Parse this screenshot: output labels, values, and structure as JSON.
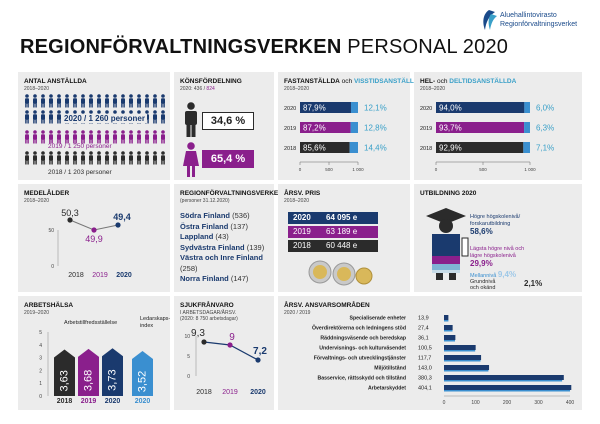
{
  "logo": {
    "line1": "Aluehallintovirasto",
    "line2": "Regionförvaltningsverket"
  },
  "title": {
    "bold": "REGIONFÖRVALTNINGSVERKEN",
    "normal": "PERSONAL 2020"
  },
  "antal": {
    "heading": "ANTAL ANSTÄLLDA",
    "years": "2018–2020",
    "line2020": "2020 / 1 260 personer",
    "line2019": "2019 / 1 250 personer",
    "line2018": "2018 / 1 203 personer"
  },
  "kon": {
    "heading": "KÖNSFÖRDELNING",
    "sub_prefix": "2020: ",
    "sub_men": "436",
    "sub_sep": " / ",
    "sub_women": "824",
    "men_pct": "34,6 %",
    "women_pct": "65,4 %",
    "colors": {
      "men": "#2b2b2b",
      "women": "#8a1f8c"
    }
  },
  "fast": {
    "heading_a": "FASTANSTÄLLDA",
    "heading_and": " och ",
    "heading_b": "VISSTIDSANSTÄLLDA",
    "years": "2018–2020",
    "rows": [
      {
        "year": "2020",
        "left": "87,9%",
        "right": "12,1%",
        "share": 0.879
      },
      {
        "year": "2019",
        "left": "87,2%",
        "right": "12,8%",
        "share": 0.872
      },
      {
        "year": "2018",
        "left": "85,6%",
        "right": "14,4%",
        "share": 0.856
      }
    ],
    "ticks": [
      "0",
      "500",
      "1 000"
    ]
  },
  "hel": {
    "heading_a": "HEL-",
    "heading_and": " och ",
    "heading_b": "DELTIDSANSTÄLLDA",
    "years": "2018–2020",
    "rows": [
      {
        "year": "2020",
        "left": "94,0%",
        "right": "6,0%",
        "share": 0.94
      },
      {
        "year": "2019",
        "left": "93,7%",
        "right": "6,3%",
        "share": 0.937
      },
      {
        "year": "2018",
        "left": "92,9%",
        "right": "7,1%",
        "share": 0.929
      }
    ],
    "ticks": [
      "0",
      "500",
      "1 000"
    ]
  },
  "medel": {
    "heading": "MEDELÅLDER",
    "years": "2018–2020",
    "ytick_top": "50",
    "ytick_bottom": "0"
  },
  "rv": {
    "heading": "REGIONFÖRVALTNINGSVERKEN",
    "sub": "(personer 31.12.2020)",
    "items": [
      {
        "name": "Södra Finland",
        "count": " (536)"
      },
      {
        "name": "Östra Finland",
        "count": " (137)"
      },
      {
        "name": "Lappland",
        "count": " (43)"
      },
      {
        "name": "Sydvästra Finland",
        "count": " (139)"
      },
      {
        "name": "Västra och Inre Finland",
        "count": ""
      },
      {
        "name": "",
        "count": "(258)"
      },
      {
        "name": "Norra Finland",
        "count": " (147)"
      }
    ]
  },
  "pris": {
    "heading": "ÅRSV. PRIS",
    "years": "2018–2020",
    "rows": [
      {
        "year": "2020",
        "value": "64 095 e"
      },
      {
        "year": "2019",
        "value": "63 189 e"
      },
      {
        "year": "2018",
        "value": "60 448 e"
      }
    ]
  },
  "utb": {
    "heading": "UTBILDNING 2020",
    "items": [
      {
        "label1": "Högre högskolenivå/",
        "label2": "forskarutbildning",
        "value": "58,6%"
      },
      {
        "label1": "Lägsta högre nivå och",
        "label2": "lägre högskolenivå",
        "value": "29,9%"
      },
      {
        "label1": "Mellannivå",
        "label2": "",
        "value": "9,4%"
      },
      {
        "label1": "Grundnivå",
        "label2": "och okänd",
        "value": "2,1%"
      }
    ]
  },
  "arbets": {
    "heading": "ARBETSHÄLSA",
    "years": "2019–2020",
    "legend_a": "Arbetstillfredsställelse",
    "legend_b1": "Ledarskaps-",
    "legend_b2": "index",
    "yticks": [
      "5",
      "4",
      "3",
      "2",
      "1",
      "0"
    ]
  },
  "sjuk": {
    "heading": "SJUKFRÅNVARO",
    "sub1": "I ARBETSDAGAR/ÅRSV.",
    "sub2": "(2020: 8 750 arbetsdagar)",
    "yticks": [
      "10",
      "5",
      "0"
    ]
  },
  "ansvar": {
    "heading": "ÅRSV. ANSVARSOMRÅDEN",
    "years": "2020 / 2019",
    "xticks": [
      "0",
      "100",
      "200",
      "300",
      "400"
    ]
  },
  "chart_data": [
    {
      "type": "bar",
      "title": "MEDELÅLDER",
      "categories": [
        "2018",
        "2019",
        "2020"
      ],
      "values": [
        50.3,
        49.9,
        49.4
      ],
      "ylim": [
        0,
        50
      ]
    },
    {
      "type": "bar",
      "title": "ARBETSHÄLSA",
      "categories": [
        "2018",
        "2019",
        "2020",
        "2020"
      ],
      "values": [
        3.63,
        3.68,
        3.73,
        3.52
      ],
      "colors": [
        "#2b2b2b",
        "#8a1f8c",
        "#1a3a6e",
        "#3a8fd0"
      ],
      "ylim": [
        0,
        5
      ]
    },
    {
      "type": "line",
      "title": "SJUKFRÅNVARO",
      "categories": [
        "2018",
        "2019",
        "2020"
      ],
      "values": [
        9.3,
        9.0,
        7.2
      ],
      "ylim": [
        0,
        10
      ]
    },
    {
      "type": "bar",
      "title": "ÅRSV. ANSVARSOMRÅDEN",
      "categories": [
        "Specialiserade enheter",
        "Överdirektörerna och ledningens stöd",
        "Räddningsväsende och beredskap",
        "Undervisnings- och kulturväsendet",
        "Förvaltnings- och utvecklingstjänster",
        "Miljötillstånd",
        "Basservice, rättsskydd och tillstånd",
        "Arbetarskyddet"
      ],
      "series": [
        {
          "name": "2020",
          "values": [
            13.9,
            27.4,
            36.1,
            100.5,
            117.7,
            143.0,
            380.3,
            404.1
          ],
          "labels": [
            "13,9",
            "27,4",
            "36,1",
            "100,5",
            "117,7",
            "143,0",
            "380,3",
            "404,1"
          ]
        },
        {
          "name": "2019",
          "values": [
            14.0,
            27.0,
            35.0,
            99.0,
            116.0,
            141.0,
            375.0,
            400.0
          ]
        }
      ],
      "xlim": [
        0,
        400
      ]
    }
  ]
}
